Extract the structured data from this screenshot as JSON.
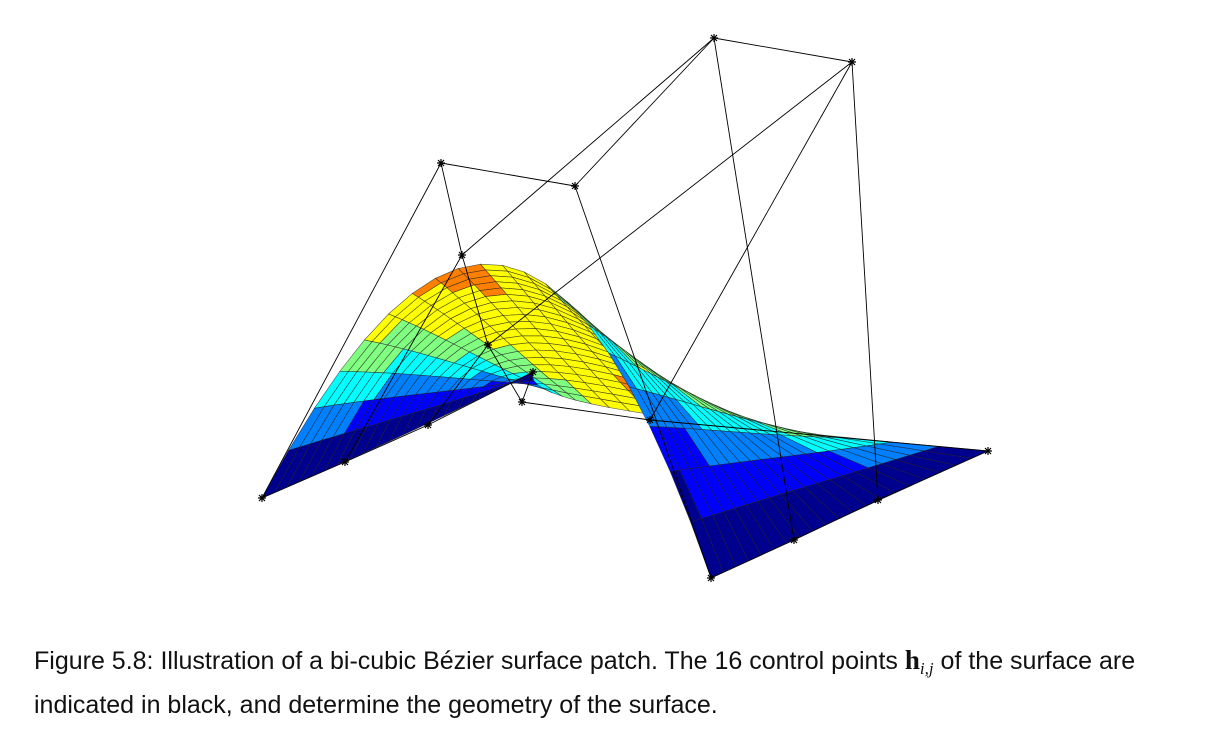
{
  "caption": {
    "label": "Figure 5.8:",
    "text_before": "Illustration of a bi-cubic Bézier surface patch. The 16 control points",
    "symbol": "h",
    "subscript": "i,j",
    "text_after": "of the surface are indicated in black, and determine the geometry of the surface."
  },
  "figure": {
    "colormap": [
      "#00008f",
      "#0000ff",
      "#0080ff",
      "#00ffff",
      "#80ff80",
      "#ffff00",
      "#ff8000",
      "#ff0000",
      "#800000"
    ],
    "control_marker_color": "#000000"
  }
}
